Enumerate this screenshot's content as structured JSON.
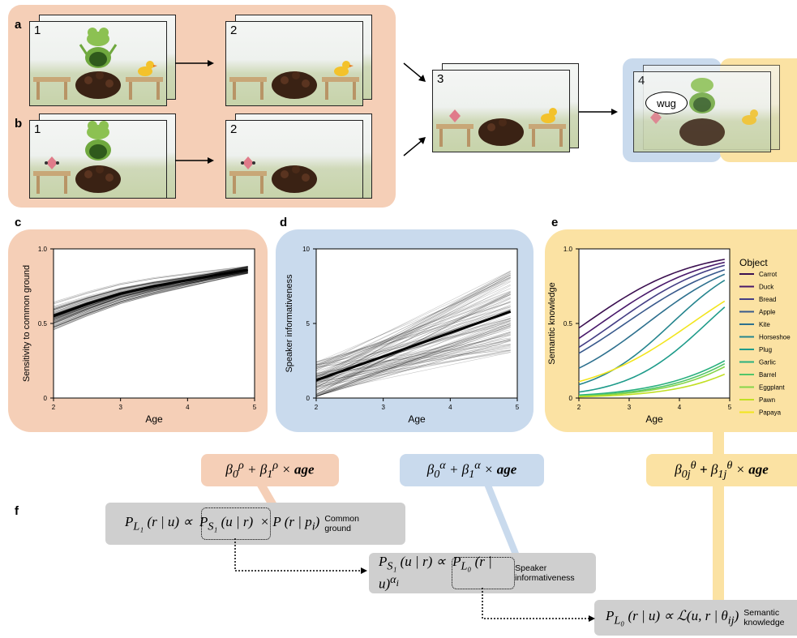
{
  "panel_labels": {
    "a": "a",
    "b": "b",
    "c": "c",
    "d": "d",
    "e": "e",
    "f": "f"
  },
  "scene_numbers": {
    "a1": "1",
    "a2": "2",
    "b1": "1",
    "b2": "2",
    "s3": "3",
    "s4": "4"
  },
  "speech_bubble": "wug",
  "colors": {
    "orange_bg": "#f5cfb7",
    "blue_bg": "#c9daed",
    "yellow_bg": "#fbe2a3",
    "equation_bg": "#cfcfcf"
  },
  "chart_data": [
    {
      "panel": "c",
      "type": "line",
      "xlabel": "Age",
      "ylabel": "Sensitivity to common ground",
      "xticks": [
        "2",
        "3",
        "4",
        "5"
      ],
      "yticks": [
        "0",
        "0.5",
        "1.0"
      ],
      "xlim": [
        2,
        5
      ],
      "ylim": [
        0,
        1
      ],
      "mean_line": {
        "x": [
          2,
          2.5,
          3,
          3.5,
          4,
          4.5,
          4.9
        ],
        "y": [
          0.55,
          0.63,
          0.7,
          0.75,
          0.79,
          0.83,
          0.86
        ]
      }
    },
    {
      "panel": "d",
      "type": "line",
      "xlabel": "Age",
      "ylabel": "Speaker informativeness",
      "xticks": [
        "2",
        "3",
        "4",
        "5"
      ],
      "yticks": [
        "0",
        "5",
        "10"
      ],
      "xlim": [
        2,
        5
      ],
      "ylim": [
        0,
        10
      ],
      "mean_line": {
        "x": [
          2,
          4.9
        ],
        "y": [
          1.2,
          5.8
        ]
      }
    },
    {
      "panel": "e",
      "type": "line",
      "xlabel": "Age",
      "ylabel": "Semantic knowledge",
      "xticks": [
        "2",
        "3",
        "4",
        "5"
      ],
      "yticks": [
        "0",
        "0.5",
        "1.0"
      ],
      "xlim": [
        2,
        5
      ],
      "ylim": [
        0,
        1
      ],
      "legend_title": "Object",
      "series": [
        {
          "name": "Carrot",
          "color": "#3b0f50",
          "start": 0.47,
          "end": 0.93
        },
        {
          "name": "Duck",
          "color": "#48186a",
          "start": 0.4,
          "end": 0.91
        },
        {
          "name": "Bread",
          "color": "#433d84",
          "start": 0.34,
          "end": 0.89
        },
        {
          "name": "Apple",
          "color": "#38598c",
          "start": 0.3,
          "end": 0.86
        },
        {
          "name": "Kite",
          "color": "#2d708e",
          "start": 0.2,
          "end": 0.83
        },
        {
          "name": "Horseshoe",
          "color": "#25858e",
          "start": 0.09,
          "end": 0.79
        },
        {
          "name": "Plug",
          "color": "#1e9b8a",
          "start": 0.04,
          "end": 0.61
        },
        {
          "name": "Garlic",
          "color": "#2ab07f",
          "start": 0.02,
          "end": 0.25
        },
        {
          "name": "Barrel",
          "color": "#52c569",
          "start": 0.015,
          "end": 0.23
        },
        {
          "name": "Eggplant",
          "color": "#86d549",
          "start": 0.012,
          "end": 0.21
        },
        {
          "name": "Pawn",
          "color": "#c2df23",
          "start": 0.008,
          "end": 0.16
        },
        {
          "name": "Papaya",
          "color": "#f2e51d",
          "start": 0.11,
          "end": 0.65
        }
      ]
    }
  ],
  "formulas": {
    "c": "β₀ᵨ + β₁ᵨ × age",
    "d": "β₀ᵅ + β₁ᵅ × age",
    "e": "β₀ⱼᶿ + β₁ⱼᶿ × age"
  },
  "equations": {
    "eq1": {
      "lhs": "PL₁ (r | u) ∝",
      "mid": "PS₁ (u | r)",
      "rhs": "× P (r | pᵢ)",
      "note": "Common ground"
    },
    "eq2": {
      "lhs": "PS₁ (u | r) ∝",
      "mid": "PL₀ (r | u)",
      "rhs": "αᵢ",
      "note": "Speaker informativeness"
    },
    "eq3": {
      "lhs": "PL₀ (r | u) ∝",
      "rhs": "ℒ(u, r | θᵢⱼ)",
      "note": "Semantic knowledge"
    }
  }
}
